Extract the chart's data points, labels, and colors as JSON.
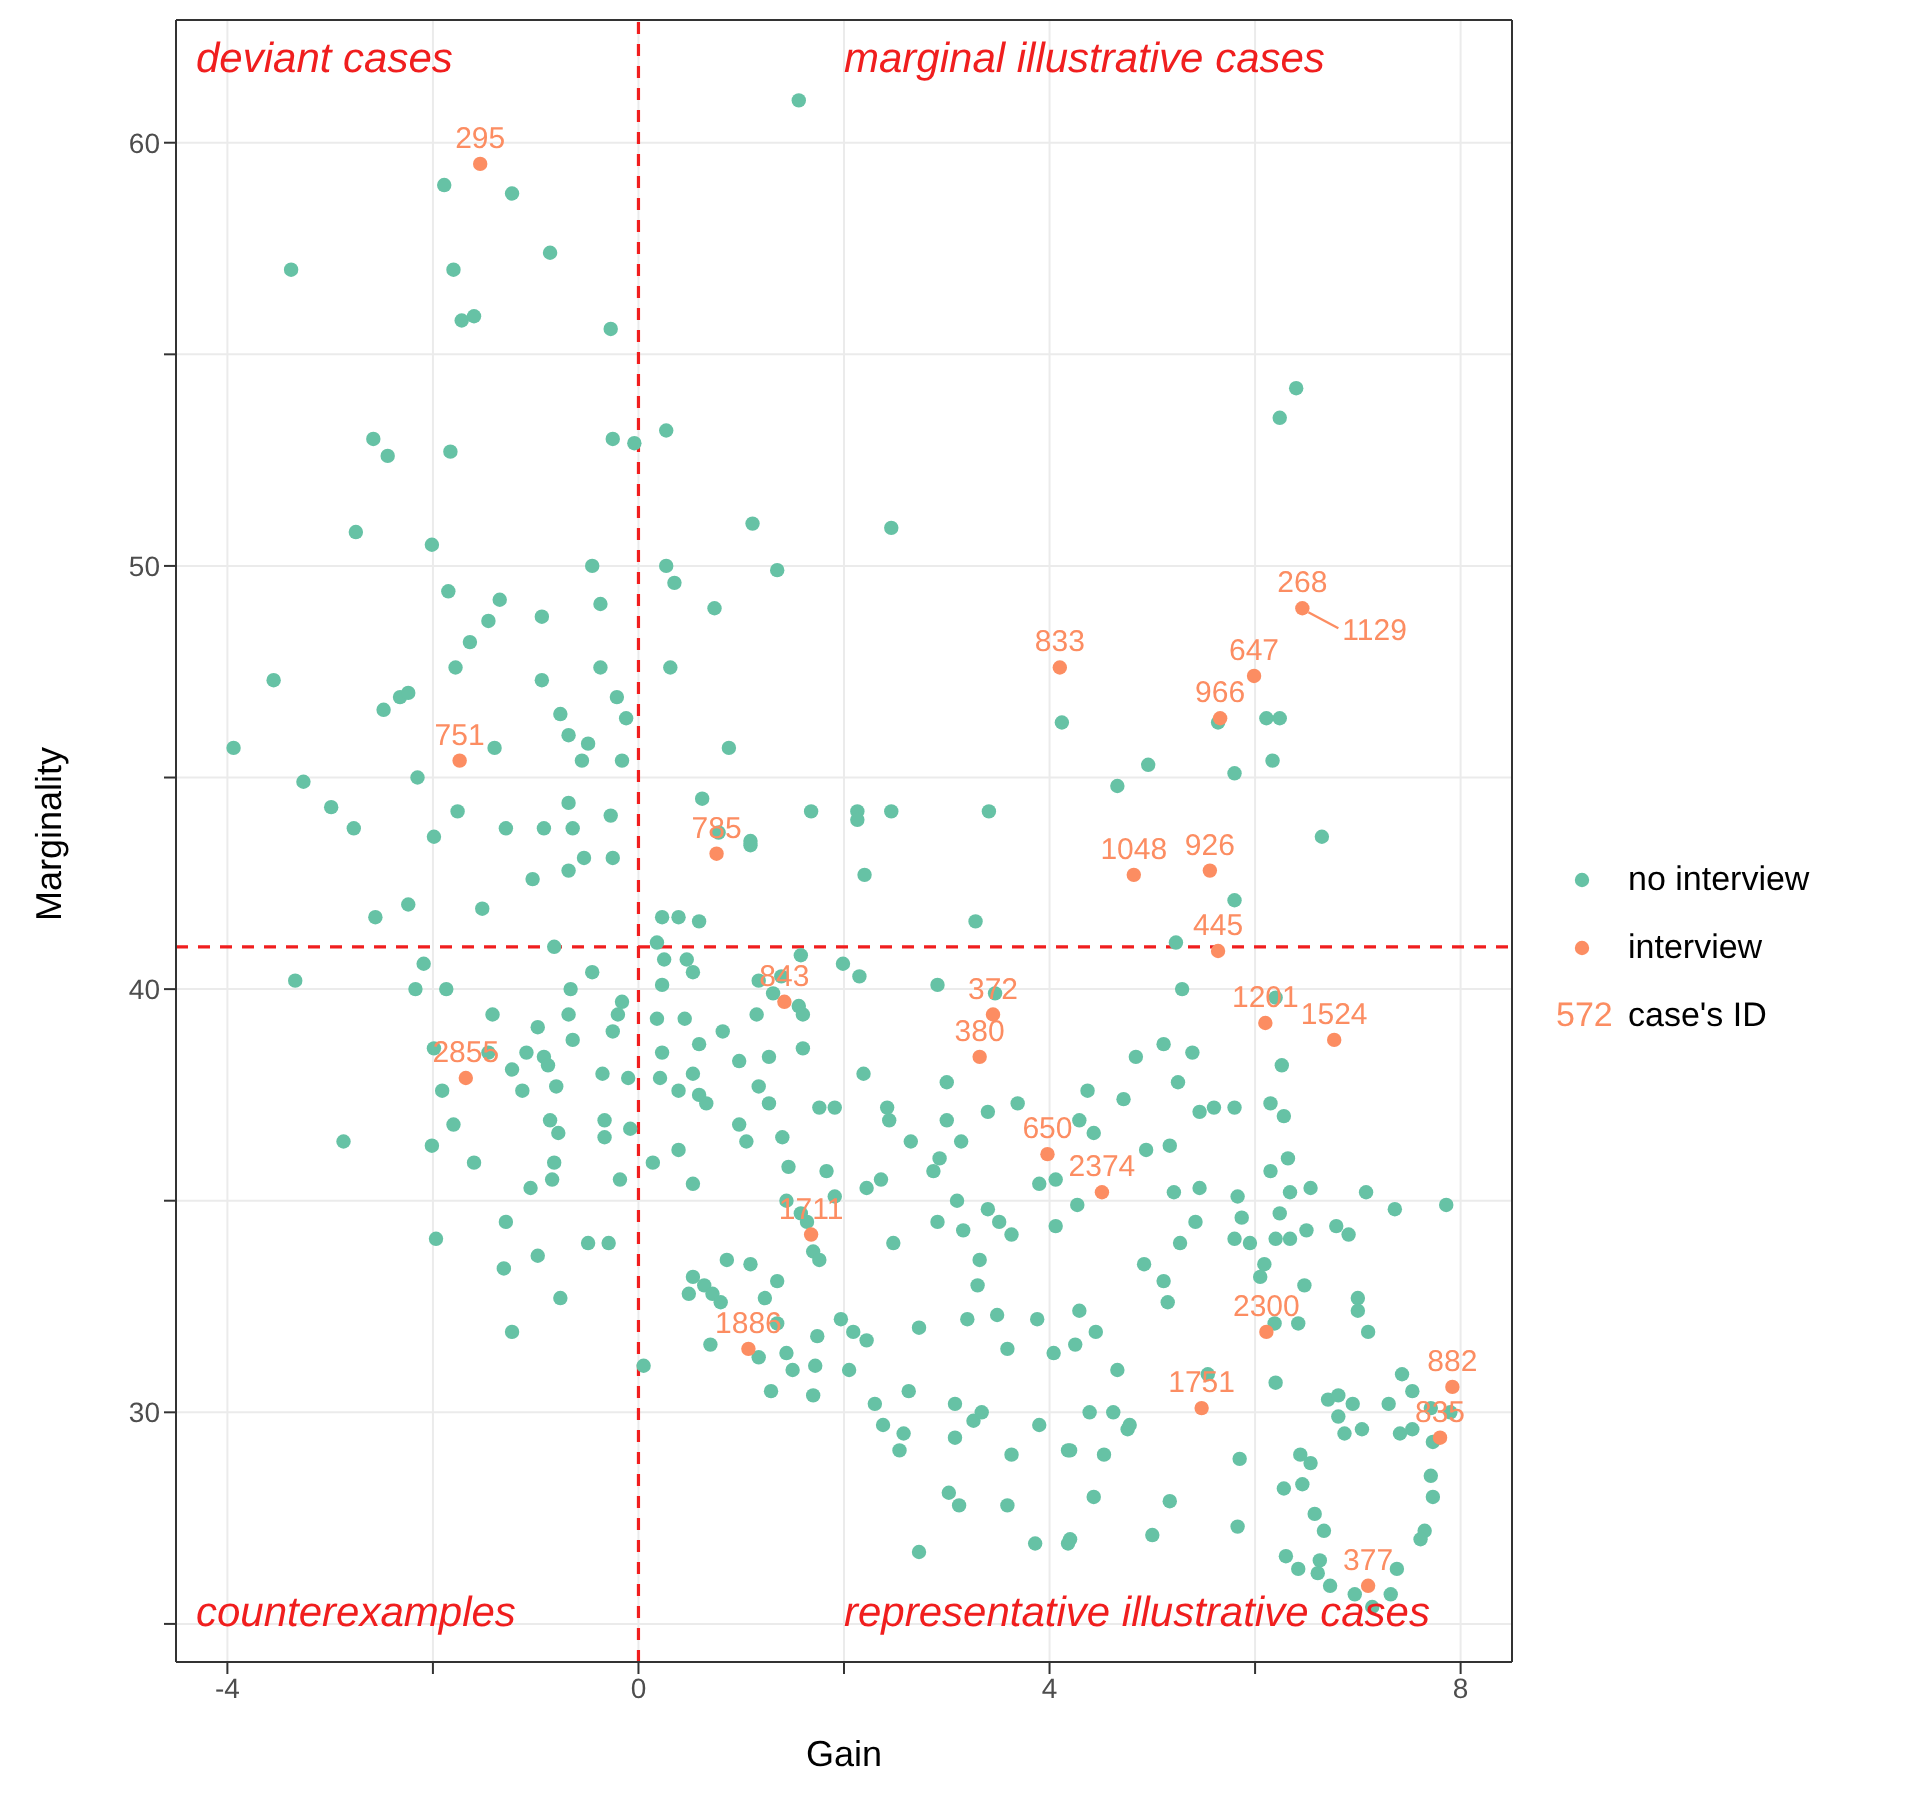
{
  "chart_data": {
    "type": "scatter",
    "xlabel": "Gain",
    "ylabel": "Marginality",
    "xlim": [
      -4.5,
      8.5
    ],
    "ylim": [
      24.1,
      62.9
    ],
    "xticks": [
      -4,
      {
        "value": -2,
        "label": null
      },
      0,
      {
        "value": 2,
        "label": null
      },
      4,
      {
        "value": 6,
        "label": null
      },
      8
    ],
    "yticks": [
      {
        "value": 25,
        "label": null
      },
      30,
      {
        "value": 35,
        "label": null
      },
      40,
      {
        "value": 45,
        "label": null
      },
      50,
      {
        "value": 55,
        "label": null
      },
      60
    ],
    "grid": true,
    "legend": "right",
    "marker": "circle",
    "ref_lines": [
      {
        "axis": "x",
        "value": 0,
        "color": "#f01e1e",
        "line_style": "dashed"
      },
      {
        "axis": "y",
        "value": 41,
        "color": "#f01e1e",
        "line_style": "dashed"
      }
    ],
    "series": [
      {
        "name": "no interview",
        "color": "#66c2a5",
        "x": [
          -1.89,
          -1.23,
          -3.38,
          -1.8,
          -0.86,
          -1.72,
          -1.6,
          -0.27,
          -2.58,
          -2.44,
          -1.83,
          -0.25,
          -2.75,
          -2.01,
          -0.45,
          -1.85,
          -1.35,
          -0.37,
          -0.94,
          -1.46,
          -1.64,
          -3.55,
          -1.78,
          -0.94,
          -0.37,
          -2.48,
          -2.32,
          -2.24,
          -0.21,
          -0.12,
          -0.76,
          -0.68,
          -0.49,
          -3.94,
          -1.4,
          -0.55,
          -0.16,
          -3.26,
          -2.15,
          -2.99,
          -2.77,
          -1.76,
          -0.68,
          -0.27,
          -1.99,
          -1.29,
          -0.92,
          -0.64,
          -1.03,
          -0.68,
          -0.53,
          -0.25,
          -2.56,
          -2.24,
          -1.52,
          -0.82,
          -2.09,
          -3.34,
          -2.17,
          -1.87,
          -0.45,
          -0.66,
          -0.16,
          -0.2,
          -0.25,
          -1.42,
          -0.68,
          -0.98,
          -0.64,
          -1.99,
          -1.46,
          -1.09,
          -0.92,
          -0.88,
          -1.23,
          -0.35,
          -0.1,
          -1.91,
          -1.13,
          -0.8,
          -0.86,
          -0.78,
          -1.8,
          -0.33,
          -0.33,
          -0.08,
          -2.87,
          -2.01,
          -1.6,
          -0.82,
          -0.84,
          -1.05,
          -0.18,
          -1.29,
          -1.97,
          -0.49,
          -0.29,
          -1.31,
          -0.98,
          -0.76,
          -1.23,
          0.05,
          1.56,
          0.27,
          1.11,
          2.46,
          0.27,
          0.35,
          1.35,
          0.74,
          0.31,
          4.12,
          0.88,
          0.62,
          1.68,
          2.13,
          2.13,
          2.46,
          3.41,
          0.78,
          1.09,
          -0.04,
          1.09,
          2.2,
          0.23,
          0.39,
          0.59,
          3.28,
          0.18,
          0.25,
          0.53,
          0.47,
          1.58,
          1.99,
          2.15,
          1.17,
          1.39,
          1.31,
          2.91,
          0.23,
          3.47,
          1.56,
          1.6,
          0.18,
          0.45,
          1.15,
          0.82,
          0.23,
          0.59,
          1.6,
          0.98,
          1.27,
          2.19,
          0.21,
          0.53,
          3.0,
          0.39,
          0.59,
          0.66,
          1.17,
          1.27,
          1.76,
          1.91,
          2.42,
          2.44,
          3.0,
          3.14,
          3.4,
          3.69,
          0.98,
          1.05,
          1.4,
          2.65,
          0.39,
          0.14,
          1.46,
          1.83,
          1.91,
          0.53,
          2.93,
          2.87,
          2.22,
          2.36,
          3.9,
          4.06,
          1.44,
          3.1,
          1.58,
          1.64,
          3.4,
          3.51,
          3.63,
          2.91,
          3.16,
          2.48,
          4.06,
          1.7,
          1.76,
          0.86,
          1.09,
          1.35,
          0.53,
          0.64,
          0.72,
          0.8,
          0.49,
          1.23,
          3.32,
          3.3,
          3.49,
          3.2,
          3.88,
          1.35,
          1.97,
          2.09,
          2.22,
          2.73,
          0.7,
          1.74,
          3.59,
          4.04,
          1.17,
          1.44,
          1.5,
          1.72,
          1.29,
          1.7,
          2.05,
          2.3,
          2.38,
          2.58,
          2.54,
          2.63,
          3.08,
          3.08,
          3.26,
          3.34,
          3.63,
          3.9,
          4.18,
          3.02,
          3.12,
          3.59,
          3.86,
          4.18,
          2.73,
          6.65,
          5.8,
          5.23,
          5.29,
          6.2,
          4.84,
          5.11,
          5.39,
          6.26,
          4.37,
          4.72,
          5.25,
          5.46,
          5.6,
          5.8,
          6.15,
          6.28,
          4.29,
          4.43,
          4.94,
          5.17,
          6.15,
          6.32,
          4.27,
          5.21,
          5.46,
          5.83,
          5.87,
          6.34,
          6.54,
          6.24,
          7.08,
          7.36,
          7.86,
          5.27,
          5.42,
          5.8,
          5.95,
          6.2,
          6.34,
          6.5,
          6.79,
          6.91,
          4.92,
          5.11,
          5.15,
          6.09,
          6.05,
          6.48,
          7.0,
          7.0,
          7.1,
          4.29,
          4.45,
          4.25,
          6.19,
          6.42,
          4.66,
          5.54,
          6.2,
          4.39,
          4.62,
          4.76,
          4.78,
          4.2,
          4.53,
          6.71,
          6.81,
          6.81,
          6.95,
          6.87,
          7.04,
          7.3,
          7.43,
          7.53,
          7.71,
          7.9,
          7.41,
          7.53,
          7.73,
          7.71,
          7.73,
          5.85,
          6.44,
          6.54,
          6.28,
          6.46,
          4.43,
          5.17,
          4.2,
          5.0,
          5.83,
          6.58,
          6.67,
          7.65,
          7.61,
          6.3,
          6.42,
          6.63,
          6.61,
          6.73,
          6.97,
          7.14,
          7.32,
          7.38,
          6.4,
          6.24,
          6.11,
          6.24,
          5.64,
          5.8,
          6.17,
          4.66,
          4.96
        ],
        "values": [
          59.0,
          58.8,
          57.0,
          57.0,
          57.4,
          55.8,
          55.9,
          55.6,
          53.0,
          52.6,
          52.7,
          53.0,
          50.8,
          50.5,
          50.0,
          49.4,
          49.2,
          49.1,
          48.8,
          48.7,
          48.2,
          47.3,
          47.6,
          47.3,
          47.6,
          46.6,
          46.9,
          47.0,
          46.9,
          46.4,
          46.5,
          46.0,
          45.8,
          45.7,
          45.7,
          45.4,
          45.4,
          44.9,
          45.0,
          44.3,
          43.8,
          44.2,
          44.4,
          44.1,
          43.6,
          43.8,
          43.8,
          43.8,
          42.6,
          42.8,
          43.1,
          43.1,
          41.7,
          42.0,
          41.9,
          41.0,
          40.6,
          40.2,
          40.0,
          40.0,
          40.4,
          40.0,
          39.7,
          39.4,
          39.0,
          39.4,
          39.4,
          39.1,
          38.8,
          38.6,
          38.5,
          38.5,
          38.4,
          38.2,
          38.1,
          38.0,
          37.9,
          37.6,
          37.6,
          37.7,
          36.9,
          36.6,
          36.8,
          36.9,
          36.5,
          36.7,
          36.4,
          36.3,
          35.9,
          35.9,
          35.5,
          35.3,
          35.5,
          34.5,
          34.1,
          34.0,
          34.0,
          33.4,
          33.7,
          32.7,
          31.9,
          31.1,
          61.0,
          53.2,
          51.0,
          50.9,
          50.0,
          49.6,
          49.9,
          49.0,
          47.6,
          46.3,
          45.7,
          44.5,
          44.2,
          44.2,
          44.0,
          44.2,
          44.2,
          43.7,
          43.5,
          52.9,
          43.4,
          42.7,
          41.7,
          41.7,
          41.6,
          41.6,
          41.1,
          40.7,
          40.4,
          40.7,
          40.8,
          40.6,
          40.3,
          40.2,
          40.3,
          39.9,
          40.1,
          40.1,
          39.9,
          39.6,
          39.4,
          39.3,
          39.3,
          39.4,
          39.0,
          38.5,
          38.7,
          38.6,
          38.3,
          38.4,
          38.0,
          37.9,
          38.0,
          37.8,
          37.6,
          37.5,
          37.3,
          37.7,
          37.3,
          37.2,
          37.2,
          37.2,
          36.9,
          36.9,
          36.4,
          37.1,
          37.3,
          36.8,
          36.4,
          36.5,
          36.4,
          36.2,
          35.9,
          35.8,
          35.7,
          35.1,
          35.4,
          36.0,
          35.7,
          35.3,
          35.5,
          35.4,
          35.5,
          35.0,
          35.0,
          34.7,
          34.5,
          34.8,
          34.5,
          34.2,
          34.5,
          34.3,
          34.0,
          34.4,
          33.8,
          33.6,
          33.6,
          33.5,
          33.1,
          33.2,
          33.0,
          32.8,
          32.6,
          32.8,
          32.7,
          33.6,
          33.0,
          32.3,
          32.2,
          32.2,
          32.1,
          32.2,
          31.9,
          31.7,
          32.0,
          31.6,
          31.8,
          31.5,
          31.4,
          31.3,
          31.4,
          31.0,
          31.1,
          30.5,
          30.4,
          31.0,
          30.2,
          29.7,
          29.5,
          29.1,
          30.5,
          30.2,
          29.4,
          29.8,
          30.0,
          29.0,
          29.7,
          29.1,
          28.1,
          27.8,
          27.8,
          26.9,
          26.9,
          26.7,
          43.6,
          42.1,
          41.1,
          40.0,
          39.8,
          38.4,
          38.7,
          38.5,
          38.2,
          37.6,
          37.4,
          37.8,
          37.1,
          37.2,
          37.2,
          37.3,
          37.0,
          36.9,
          36.6,
          36.2,
          36.3,
          35.7,
          36.0,
          34.9,
          35.2,
          35.3,
          35.1,
          34.6,
          35.2,
          35.3,
          34.7,
          35.2,
          34.8,
          34.9,
          34.0,
          34.5,
          34.1,
          34.0,
          34.1,
          34.1,
          34.3,
          34.4,
          34.2,
          33.5,
          33.1,
          32.6,
          33.5,
          33.2,
          33.0,
          32.7,
          32.4,
          31.9,
          32.4,
          31.9,
          31.6,
          32.1,
          32.1,
          31.0,
          30.9,
          30.7,
          30.0,
          30.0,
          29.6,
          29.7,
          29.1,
          29.0,
          30.3,
          30.4,
          29.9,
          30.2,
          29.5,
          29.6,
          30.2,
          30.9,
          30.5,
          30.1,
          30.0,
          29.5,
          29.6,
          29.3,
          28.5,
          28.0,
          28.9,
          29.0,
          28.8,
          28.2,
          28.3,
          28.0,
          27.9,
          27.0,
          27.1,
          27.3,
          27.6,
          27.2,
          27.2,
          27.0,
          26.6,
          26.3,
          26.5,
          26.2,
          25.9,
          25.7,
          25.4,
          25.7,
          26.3,
          54.2,
          53.5,
          46.4,
          46.4,
          46.3,
          45.1,
          45.4,
          44.8,
          45.3
        ]
      },
      {
        "name": "interview",
        "color": "#fc8d62",
        "x": [
          -1.54,
          -1.74,
          0.76,
          -1.68,
          1.42,
          3.45,
          3.32,
          3.98,
          1.68,
          1.07,
          4.1,
          6.46,
          5.99,
          5.66,
          5.56,
          4.82,
          6.77,
          5.64,
          6.1,
          4.51,
          6.11,
          5.48,
          7.92,
          7.8,
          7.1
        ],
        "values": [
          59.5,
          45.4,
          43.2,
          37.9,
          39.7,
          39.4,
          38.4,
          36.1,
          34.2,
          31.5,
          47.6,
          49.0,
          47.4,
          46.4,
          42.8,
          42.7,
          38.8,
          40.9,
          39.2,
          35.2,
          31.9,
          30.1,
          30.6,
          29.4,
          25.9
        ]
      }
    ],
    "annotations": [
      "deviant cases",
      "marginal illustrative cases",
      "counterexamples",
      "representative illustrative cases",
      "572 case's ID",
      {
        "text": "295",
        "x": -1.54,
        "y": 59.5
      },
      {
        "text": "751",
        "x": -1.74,
        "y": 45.4
      },
      {
        "text": "785",
        "x": 0.76,
        "y": 43.2
      },
      {
        "text": "2855",
        "x": -1.68,
        "y": 37.9
      },
      {
        "text": "843",
        "x": 1.42,
        "y": 39.7
      },
      {
        "text": "372",
        "x": 3.45,
        "y": 39.4
      },
      {
        "text": "380",
        "x": 3.32,
        "y": 38.4
      },
      {
        "text": "650",
        "x": 3.98,
        "y": 36.1
      },
      {
        "text": "1711",
        "x": 1.68,
        "y": 34.2
      },
      {
        "text": "1886",
        "x": 1.07,
        "y": 31.5
      },
      {
        "text": "833",
        "x": 4.1,
        "y": 47.6
      },
      {
        "text": "268",
        "x": 6.46,
        "y": 49.0
      },
      {
        "text": "1129",
        "x": 6.46,
        "y": 49.0
      },
      {
        "text": "647",
        "x": 5.99,
        "y": 47.4
      },
      {
        "text": "966",
        "x": 5.66,
        "y": 46.4
      },
      {
        "text": "926",
        "x": 5.56,
        "y": 42.8
      },
      {
        "text": "1048",
        "x": 4.82,
        "y": 42.7
      },
      {
        "text": "1524",
        "x": 6.77,
        "y": 38.8
      },
      {
        "text": "445",
        "x": 5.64,
        "y": 40.9
      },
      {
        "text": "1201",
        "x": 6.1,
        "y": 39.2
      },
      {
        "text": "2374",
        "x": 4.51,
        "y": 35.2
      },
      {
        "text": "2300",
        "x": 6.11,
        "y": 31.9
      },
      {
        "text": "1751",
        "x": 5.48,
        "y": 30.1
      },
      {
        "text": "882",
        "x": 7.92,
        "y": 30.6
      },
      {
        "text": "835",
        "x": 7.8,
        "y": 29.4
      },
      {
        "text": "377",
        "x": 7.1,
        "y": 25.9
      }
    ]
  }
}
